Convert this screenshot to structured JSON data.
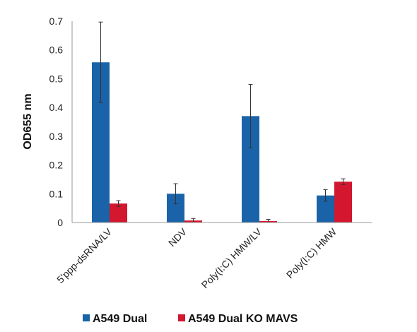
{
  "chart_data": {
    "type": "bar",
    "title": "",
    "xlabel": "",
    "ylabel": "OD655 nm",
    "ylim": [
      0,
      0.7
    ],
    "yticks": [
      "0",
      "0.1",
      "0.2",
      "0.3",
      "0.4",
      "0.5",
      "0.6",
      "0.7"
    ],
    "grid": false,
    "legend_position": "bottom",
    "categories": [
      "5'ppp-dsRNA/LV",
      "NDV",
      "Poly(I:C) HMW/LV",
      "Poly(I:C) HMW"
    ],
    "series": [
      {
        "name": "A549 Dual",
        "color": "#1a63a8",
        "values": [
          0.557,
          0.1,
          0.37,
          0.094
        ],
        "error": [
          0.14,
          0.035,
          0.11,
          0.02
        ]
      },
      {
        "name": "A549 Dual KO MAVS",
        "color": "#d2172e",
        "values": [
          0.066,
          0.007,
          0.005,
          0.142
        ],
        "error": [
          0.01,
          0.007,
          0.006,
          0.01
        ]
      }
    ]
  }
}
